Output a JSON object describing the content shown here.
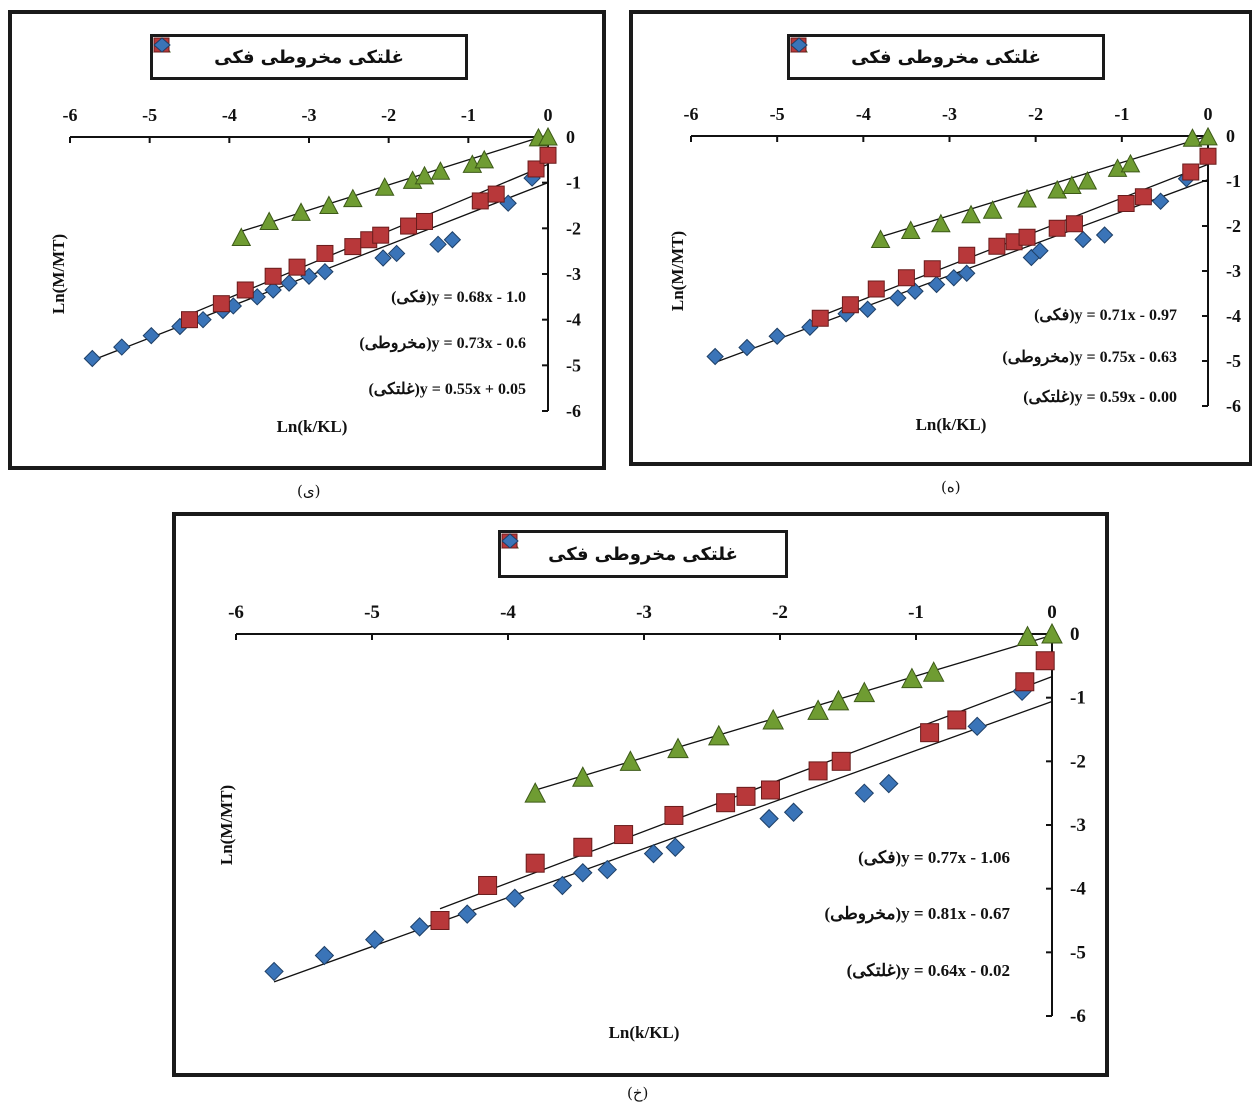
{
  "figure": {
    "captions": [
      "(ی)",
      "(ه)",
      "(خ)"
    ],
    "legend": {
      "s1": "فکی",
      "s2": "مخروطی",
      "s3": "غلتکی"
    }
  },
  "series_style": [
    {
      "name": "فکی",
      "marker": "diamond",
      "color": "#3a74b8"
    },
    {
      "name": "مخروطی",
      "marker": "square",
      "color": "#b8383a"
    },
    {
      "name": "غلتکی",
      "marker": "triangle",
      "color": "#6f9c32"
    }
  ],
  "chart_data": [
    {
      "type": "scatter",
      "caption": "(ی)",
      "xlabel": "Ln(k/KL)",
      "ylabel": "Ln(M/MT)",
      "xlim": [
        -6,
        0
      ],
      "ylim": [
        -6,
        0
      ],
      "xticks": [
        "-6",
        "-5",
        "-4",
        "-3",
        "-2",
        "-1",
        "0"
      ],
      "yticks": [
        "0",
        "-1",
        "-2",
        "-3",
        "-4",
        "-5",
        "-6"
      ],
      "equations": [
        "(فکی)y = 0.68x - 1.0",
        "(مخروطی)y = 0.73x - 0.6",
        "(غلتکی)y = 0.55x + 0.05"
      ],
      "series": [
        {
          "name": "فکی",
          "fit": [
            0.68,
            -1.0
          ],
          "x": [
            -5.72,
            -5.35,
            -4.98,
            -4.62,
            -4.33,
            -4.08,
            -3.95,
            -3.65,
            -3.45,
            -3.25,
            -3.0,
            -2.8,
            -2.07,
            -1.9,
            -1.38,
            -1.2,
            -0.5,
            -0.2
          ],
          "y": [
            -4.85,
            -4.6,
            -4.35,
            -4.15,
            -4.0,
            -3.8,
            -3.7,
            -3.5,
            -3.35,
            -3.2,
            -3.05,
            -2.95,
            -2.65,
            -2.55,
            -2.35,
            -2.25,
            -1.45,
            -0.9
          ]
        },
        {
          "name": "مخروطی",
          "fit": [
            0.73,
            -0.6
          ],
          "x": [
            -4.5,
            -4.1,
            -3.8,
            -3.45,
            -3.15,
            -2.8,
            -2.45,
            -2.25,
            -2.1,
            -1.75,
            -1.55,
            -0.85,
            -0.65,
            -0.15,
            0.0
          ],
          "y": [
            -4.0,
            -3.65,
            -3.35,
            -3.05,
            -2.85,
            -2.55,
            -2.4,
            -2.25,
            -2.15,
            -1.95,
            -1.85,
            -1.4,
            -1.25,
            -0.7,
            -0.4
          ]
        },
        {
          "name": "غلتکی",
          "fit": [
            0.55,
            0.05
          ],
          "x": [
            -3.85,
            -3.5,
            -3.1,
            -2.75,
            -2.45,
            -2.05,
            -1.7,
            -1.55,
            -1.35,
            -0.95,
            -0.8,
            -0.12,
            0.0
          ],
          "y": [
            -2.2,
            -1.85,
            -1.65,
            -1.5,
            -1.35,
            -1.1,
            -0.95,
            -0.85,
            -0.75,
            -0.6,
            -0.5,
            -0.02,
            0.0
          ]
        }
      ]
    },
    {
      "type": "scatter",
      "caption": "(ه)",
      "xlabel": "Ln(k/KL)",
      "ylabel": "Ln(M/MT)",
      "xlim": [
        -6,
        0
      ],
      "ylim": [
        -6,
        0
      ],
      "xticks": [
        "-6",
        "-5",
        "-4",
        "-3",
        "-2",
        "-1",
        "0"
      ],
      "yticks": [
        "0",
        "-1",
        "-2",
        "-3",
        "-4",
        "-5",
        "-6"
      ],
      "equations": [
        "(فکی)y = 0.71x - 0.97",
        "(مخروطی)y = 0.75x - 0.63",
        "(غلتکی)y = 0.59x - 0.00"
      ],
      "series": [
        {
          "name": "فکی",
          "fit": [
            0.71,
            -0.97
          ],
          "x": [
            -5.72,
            -5.35,
            -5.0,
            -4.62,
            -4.2,
            -3.95,
            -3.6,
            -3.4,
            -3.15,
            -2.95,
            -2.8,
            -2.05,
            -1.95,
            -1.45,
            -1.2,
            -0.55,
            -0.25
          ],
          "y": [
            -4.9,
            -4.7,
            -4.45,
            -4.25,
            -3.95,
            -3.85,
            -3.6,
            -3.45,
            -3.3,
            -3.15,
            -3.05,
            -2.7,
            -2.55,
            -2.3,
            -2.2,
            -1.45,
            -0.95
          ]
        },
        {
          "name": "مخروطی",
          "fit": [
            0.75,
            -0.63
          ],
          "x": [
            -4.5,
            -4.15,
            -3.85,
            -3.5,
            -3.2,
            -2.8,
            -2.45,
            -2.25,
            -2.1,
            -1.75,
            -1.55,
            -0.95,
            -0.75,
            -0.2,
            0.0
          ],
          "y": [
            -4.05,
            -3.75,
            -3.4,
            -3.15,
            -2.95,
            -2.65,
            -2.45,
            -2.35,
            -2.25,
            -2.05,
            -1.95,
            -1.5,
            -1.35,
            -0.8,
            -0.45
          ]
        },
        {
          "name": "غلتکی",
          "fit": [
            0.59,
            0.0
          ],
          "x": [
            -3.8,
            -3.45,
            -3.1,
            -2.75,
            -2.5,
            -2.1,
            -1.75,
            -1.58,
            -1.4,
            -1.05,
            -0.9,
            -0.18,
            0.0
          ],
          "y": [
            -2.3,
            -2.1,
            -1.95,
            -1.75,
            -1.65,
            -1.4,
            -1.2,
            -1.1,
            -1.0,
            -0.72,
            -0.62,
            -0.05,
            -0.02
          ]
        }
      ]
    },
    {
      "type": "scatter",
      "caption": "(خ)",
      "xlabel": "Ln(k/KL)",
      "ylabel": "Ln(M/MT)",
      "xlim": [
        -6,
        0
      ],
      "ylim": [
        -6,
        0
      ],
      "xticks": [
        "-6",
        "-5",
        "-4",
        "-3",
        "-2",
        "-1",
        "0"
      ],
      "yticks": [
        "0",
        "-1",
        "-2",
        "-3",
        "-4",
        "-5",
        "-6"
      ],
      "equations": [
        "(فکی)y = 0.77x - 1.06",
        "(مخروطی)y = 0.81x - 0.67",
        "(غلتکی)y = 0.64x - 0.02"
      ],
      "series": [
        {
          "name": "فکی",
          "fit": [
            0.77,
            -1.06
          ],
          "x": [
            -5.72,
            -5.35,
            -4.98,
            -4.65,
            -4.3,
            -3.95,
            -3.6,
            -3.45,
            -3.27,
            -2.93,
            -2.77,
            -2.08,
            -1.9,
            -1.38,
            -1.2,
            -0.55,
            -0.22
          ],
          "y": [
            -5.3,
            -5.05,
            -4.8,
            -4.6,
            -4.4,
            -4.15,
            -3.95,
            -3.75,
            -3.7,
            -3.45,
            -3.35,
            -2.9,
            -2.8,
            -2.5,
            -2.35,
            -1.45,
            -0.9
          ]
        },
        {
          "name": "مخروطی",
          "fit": [
            0.81,
            -0.67
          ],
          "x": [
            -4.5,
            -4.15,
            -3.8,
            -3.45,
            -3.15,
            -2.78,
            -2.4,
            -2.25,
            -2.07,
            -1.72,
            -1.55,
            -0.9,
            -0.7,
            -0.2,
            -0.05
          ],
          "y": [
            -4.5,
            -3.95,
            -3.6,
            -3.35,
            -3.15,
            -2.85,
            -2.65,
            -2.55,
            -2.45,
            -2.15,
            -2.0,
            -1.55,
            -1.35,
            -0.75,
            -0.42
          ]
        },
        {
          "name": "غلتکی",
          "fit": [
            0.64,
            -0.02
          ],
          "x": [
            -3.8,
            -3.45,
            -3.1,
            -2.75,
            -2.45,
            -2.05,
            -1.72,
            -1.57,
            -1.38,
            -1.03,
            -0.87,
            -0.18,
            0.0
          ],
          "y": [
            -2.5,
            -2.25,
            -2.0,
            -1.8,
            -1.6,
            -1.35,
            -1.2,
            -1.05,
            -0.92,
            -0.7,
            -0.6,
            -0.04,
            0.0
          ]
        }
      ]
    }
  ]
}
